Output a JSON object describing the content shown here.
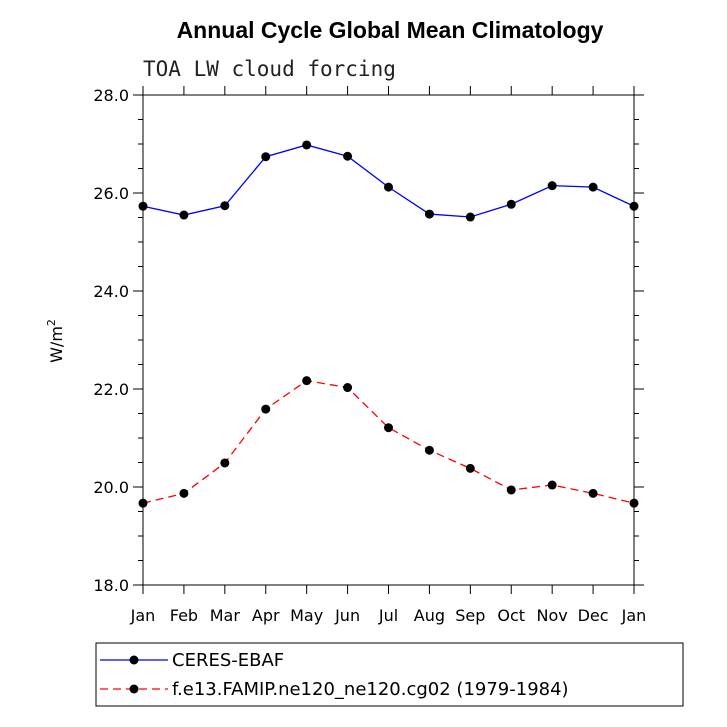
{
  "chart_data": {
    "type": "line",
    "title": "Annual Cycle Global Mean Climatology",
    "subtitle": "TOA LW cloud forcing",
    "xlabel": "",
    "ylabel": "W/m",
    "ylabel_superscript": "2",
    "categories": [
      "Jan",
      "Feb",
      "Mar",
      "Apr",
      "May",
      "Jun",
      "Jul",
      "Aug",
      "Sep",
      "Oct",
      "Nov",
      "Dec",
      "Jan"
    ],
    "ylim": [
      18.0,
      28.0
    ],
    "yticks": [
      18.0,
      20.0,
      22.0,
      24.0,
      26.0,
      28.0
    ],
    "ytick_labels": [
      "18.0",
      "20.0",
      "22.0",
      "24.0",
      "26.0",
      "28.0"
    ],
    "series": [
      {
        "name": "CERES-EBAF",
        "color": "#0000ff",
        "dash": "solid",
        "values": [
          25.73,
          25.55,
          25.74,
          26.74,
          26.98,
          26.75,
          26.12,
          25.57,
          25.51,
          25.77,
          26.15,
          26.12,
          25.73
        ]
      },
      {
        "name": "f.e13.FAMIP.ne120_ne120.cg02 (1979-1984)",
        "color": "#ff0000",
        "dash": "dashed",
        "values": [
          19.67,
          19.87,
          20.49,
          21.59,
          22.17,
          22.03,
          21.21,
          20.75,
          20.38,
          19.94,
          20.04,
          19.87,
          19.67
        ]
      }
    ],
    "legend_position": "bottom"
  }
}
